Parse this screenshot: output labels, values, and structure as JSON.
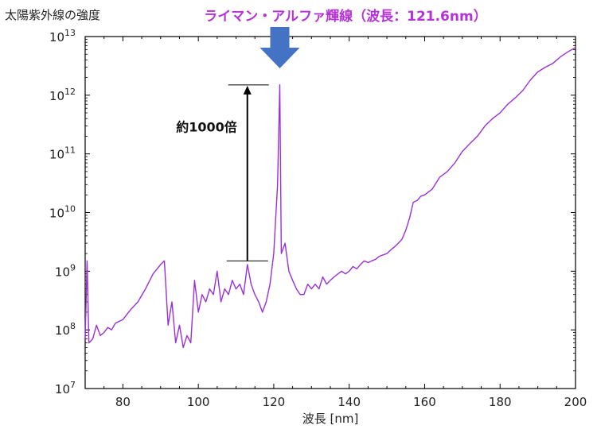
{
  "chart_data": {
    "type": "line",
    "title": "ライマン・アルファ輝線（波長：121.6nm）",
    "title_color": "#b433d6",
    "ylabel": "太陽紫外線の強度",
    "xlabel": "波長 [nm]",
    "xlim": [
      70,
      200
    ],
    "ylim": [
      10000000.0,
      10000000000000.0
    ],
    "yscale": "log",
    "x_ticks": [
      80,
      100,
      120,
      140,
      160,
      180,
      200
    ],
    "y_ticks": [
      {
        "value": 10000000.0,
        "base": "10",
        "exp": "7"
      },
      {
        "value": 100000000.0,
        "base": "10",
        "exp": "8"
      },
      {
        "value": 1000000000.0,
        "base": "10",
        "exp": "9"
      },
      {
        "value": 10000000000.0,
        "base": "10",
        "exp": "10"
      },
      {
        "value": 100000000000.0,
        "base": "10",
        "exp": "11"
      },
      {
        "value": 1000000000000.0,
        "base": "10",
        "exp": "12"
      },
      {
        "value": 10000000000000.0,
        "base": "10",
        "exp": "13"
      }
    ],
    "series_color": "#9b30d9",
    "arrow_color": "#4472c4",
    "annotation": {
      "text": "約1000倍",
      "x": 113,
      "y_low": 1500000000.0,
      "y_high": 1500000000000.0
    },
    "series": [
      {
        "x": [
          70,
          70.5,
          71,
          72,
          73,
          74,
          75,
          76,
          77,
          78,
          80,
          82,
          84,
          86,
          88,
          90,
          91,
          92,
          93,
          94,
          95,
          96,
          97,
          98,
          99,
          100,
          101,
          102,
          103,
          104,
          105,
          106,
          107,
          108,
          109,
          110,
          111,
          112,
          113,
          114,
          115,
          116,
          117,
          118,
          119,
          120,
          121,
          121.6,
          122,
          123,
          124,
          125,
          126,
          127,
          128,
          129,
          130,
          131,
          132,
          133,
          134,
          135,
          136,
          137,
          138,
          139,
          140,
          141,
          142,
          143,
          144,
          145,
          146,
          147,
          148,
          149,
          150,
          151,
          152,
          153,
          154,
          155,
          156,
          157,
          158,
          159,
          160,
          162,
          164,
          166,
          168,
          170,
          172,
          174,
          176,
          178,
          180,
          182,
          184,
          186,
          188,
          190,
          192,
          194,
          196,
          198,
          200
        ],
        "y": [
          70000000.0,
          1500000000.0,
          60000000.0,
          70000000.0,
          120000000.0,
          80000000.0,
          90000000.0,
          110000000.0,
          100000000.0,
          130000000.0,
          150000000.0,
          220000000.0,
          300000000.0,
          500000000.0,
          900000000.0,
          1300000000.0,
          1500000000.0,
          120000000.0,
          300000000.0,
          60000000.0,
          120000000.0,
          50000000.0,
          80000000.0,
          60000000.0,
          700000000.0,
          200000000.0,
          400000000.0,
          300000000.0,
          500000000.0,
          400000000.0,
          1000000000.0,
          300000000.0,
          500000000.0,
          400000000.0,
          700000000.0,
          500000000.0,
          600000000.0,
          400000000.0,
          1300000000.0,
          600000000.0,
          400000000.0,
          300000000.0,
          200000000.0,
          300000000.0,
          600000000.0,
          2000000000.0,
          30000000000.0,
          1500000000000.0,
          2000000000.0,
          3000000000.0,
          1000000000.0,
          700000000.0,
          500000000.0,
          400000000.0,
          400000000.0,
          600000000.0,
          500000000.0,
          600000000.0,
          500000000.0,
          800000000.0,
          600000000.0,
          700000000.0,
          800000000.0,
          900000000.0,
          1000000000.0,
          900000000.0,
          1000000000.0,
          1200000000.0,
          1100000000.0,
          1300000000.0,
          1500000000.0,
          1400000000.0,
          1500000000.0,
          1600000000.0,
          1800000000.0,
          1900000000.0,
          2000000000.0,
          2300000000.0,
          2600000000.0,
          3000000000.0,
          3500000000.0,
          5000000000.0,
          8000000000.0,
          15000000000.0,
          16000000000.0,
          19000000000.0,
          20000000000.0,
          25000000000.0,
          40000000000.0,
          50000000000.0,
          70000000000.0,
          110000000000.0,
          150000000000.0,
          200000000000.0,
          300000000000.0,
          400000000000.0,
          500000000000.0,
          700000000000.0,
          900000000000.0,
          1200000000000.0,
          1800000000000.0,
          2500000000000.0,
          3000000000000.0,
          3500000000000.0,
          4500000000000.0,
          5500000000000.0,
          6500000000000.0
        ]
      }
    ]
  }
}
